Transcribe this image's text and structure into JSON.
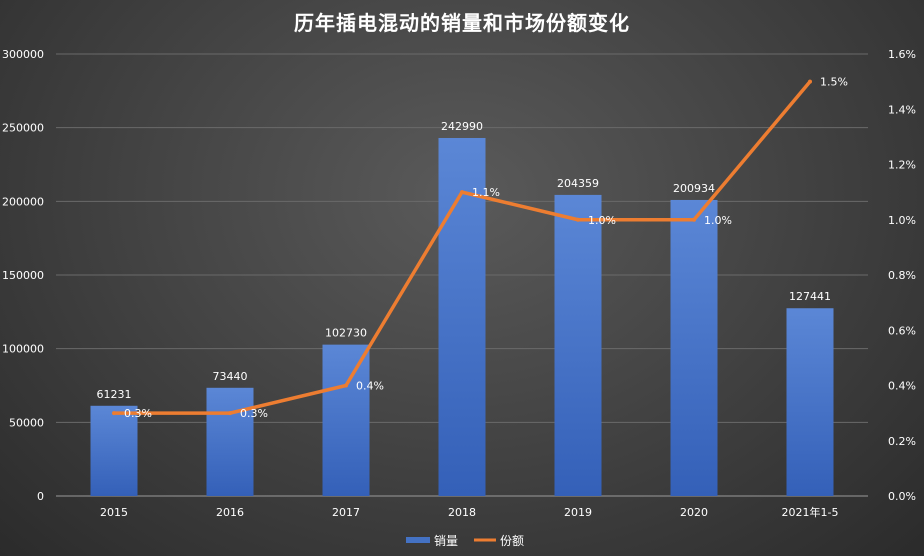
{
  "chart_data": {
    "type": "bar",
    "title": "历年插电混动的销量和市场份额变化",
    "categories": [
      "2015",
      "2016",
      "2017",
      "2018",
      "2019",
      "2020",
      "2021年1-5"
    ],
    "series": [
      {
        "name": "销量",
        "type": "bar",
        "axis": "left",
        "values": [
          61231,
          73440,
          102730,
          242990,
          204359,
          200934,
          127441
        ],
        "labels": [
          "61231",
          "73440",
          "102730",
          "242990",
          "204359",
          "200934",
          "127441"
        ],
        "color": "#4472c4"
      },
      {
        "name": "份额",
        "type": "line",
        "axis": "right",
        "values": [
          0.3,
          0.3,
          0.4,
          1.1,
          1.0,
          1.0,
          1.5
        ],
        "labels": [
          "0.3%",
          "0.3%",
          "0.4%",
          "1.1%",
          "1.0%",
          "1.0%",
          "1.5%"
        ],
        "color": "#ed7d31"
      }
    ],
    "left_axis": {
      "range": [
        0,
        300000
      ],
      "ticks": [
        "0",
        "50000",
        "100000",
        "150000",
        "200000",
        "250000",
        "300000"
      ]
    },
    "right_axis": {
      "range": [
        0,
        1.6
      ],
      "ticks": [
        "0.0%",
        "0.2%",
        "0.4%",
        "0.6%",
        "0.8%",
        "1.0%",
        "1.2%",
        "1.4%",
        "1.6%"
      ]
    },
    "grid": true,
    "legend_position": "bottom"
  }
}
